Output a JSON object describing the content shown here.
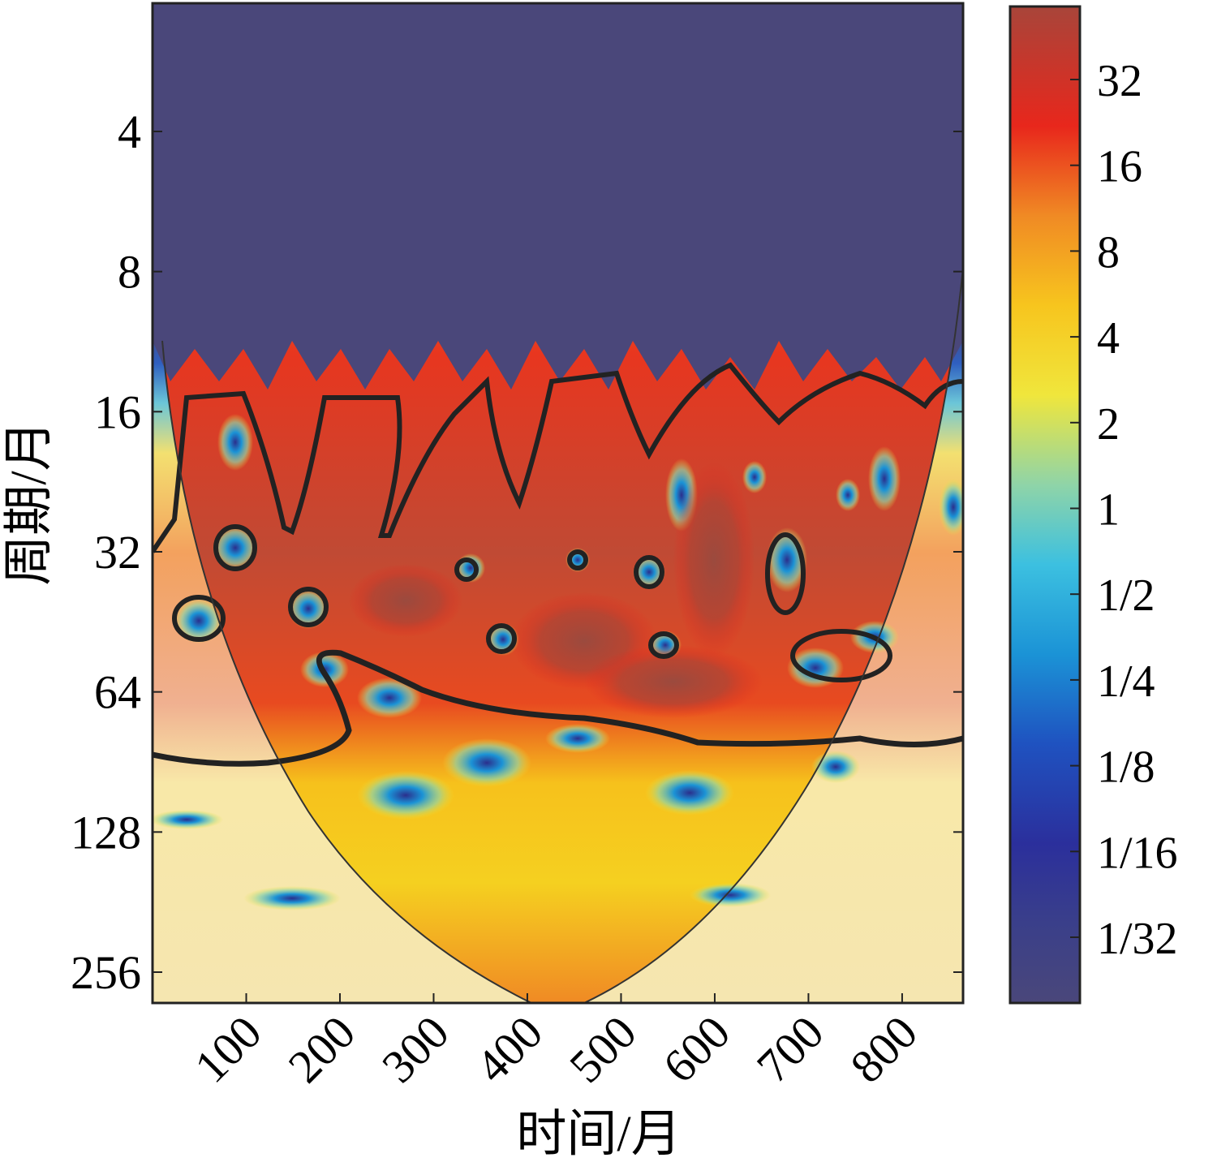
{
  "chart_data": {
    "type": "heatmap",
    "title": "",
    "xlabel": "时间/月",
    "ylabel": "周期/月",
    "x_ticks": [
      "100",
      "200",
      "300",
      "400",
      "500",
      "600",
      "700",
      "800"
    ],
    "x_tick_values": [
      100,
      200,
      300,
      400,
      500,
      600,
      700,
      800
    ],
    "xlim": [
      0,
      865
    ],
    "y_ticks": [
      "4",
      "8",
      "16",
      "32",
      "64",
      "128",
      "256"
    ],
    "y_tick_values": [
      4,
      8,
      16,
      32,
      64,
      128,
      256
    ],
    "y_scale": "log2",
    "y_reversed": true,
    "colorbar": {
      "scale": "log2",
      "ticks": [
        "1/32",
        "1/16",
        "1/8",
        "1/4",
        "1/2",
        "1",
        "2",
        "4",
        "8",
        "16",
        "32"
      ],
      "tick_values": [
        0.03125,
        0.0625,
        0.125,
        0.25,
        0.5,
        1,
        2,
        4,
        8,
        16,
        32
      ],
      "colors": [
        "#4a477a",
        "#2b2f8c",
        "#1f4fb5",
        "#1b93d6",
        "#3cc0e0",
        "#8fd4a8",
        "#f0e63c",
        "#f7c51e",
        "#f08a24",
        "#e8271c",
        "#a8453a"
      ]
    },
    "cone_of_influence": true,
    "significance_contours": true,
    "grid": false,
    "legend": "none"
  }
}
